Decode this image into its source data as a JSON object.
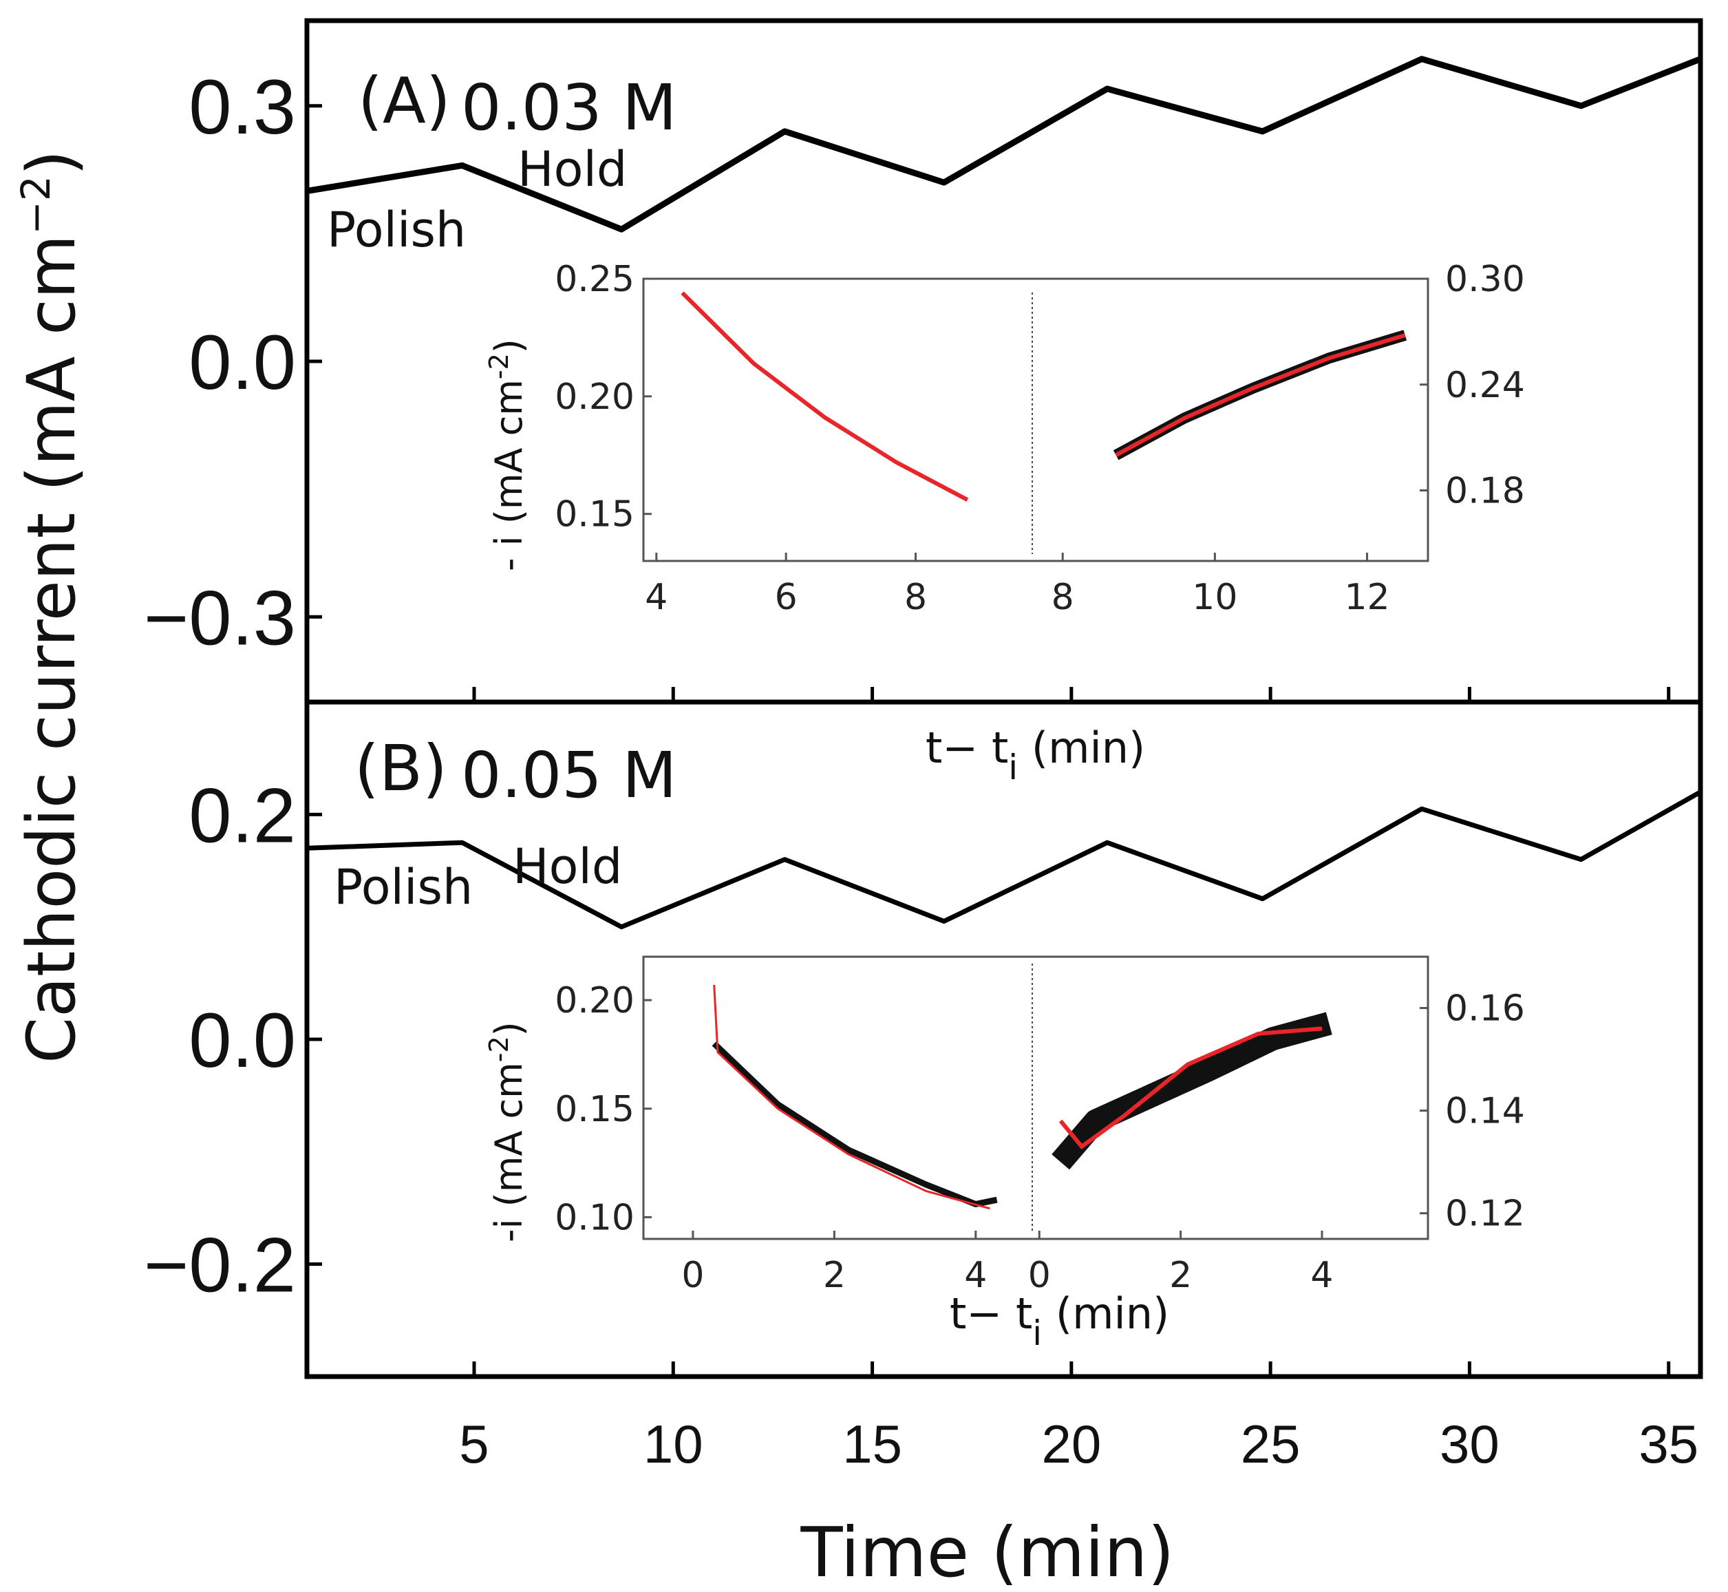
{
  "chart_data": {
    "type": "line",
    "xlabel": "Time (min)",
    "ylabel": "Cathodic current (mA cm",
    "ylabel_sup": "−2",
    "ylabel_close": ")",
    "xlim": [
      0.8,
      35.8
    ],
    "xticks": [
      "5",
      "10",
      "15",
      "20",
      "25",
      "30",
      "35"
    ],
    "xtick_values": [
      5,
      10,
      15,
      20,
      25,
      30,
      35
    ],
    "panels": [
      {
        "id": "A",
        "panel_label": "(A)",
        "concentration": "0.03 M",
        "ylim": [
          -0.4,
          0.4
        ],
        "yticks": [
          "0.3",
          "0.0",
          "−0.3"
        ],
        "ytick_values": [
          0.3,
          0.0,
          -0.3
        ],
        "annotations": {
          "polish": "Polish",
          "hold": "Hold"
        },
        "series": [
          {
            "name": "current",
            "points": [
              [
                0.8,
                0.2
              ],
              [
                4.7,
                0.23
              ],
              [
                8.7,
                0.155
              ],
              [
                12.8,
                0.27
              ],
              [
                16.8,
                0.21
              ],
              [
                20.9,
                0.32
              ],
              [
                24.8,
                0.27
              ],
              [
                28.8,
                0.355
              ],
              [
                32.8,
                0.3
              ],
              [
                35.8,
                0.355
              ]
            ]
          }
        ],
        "inset": {
          "ylabel": "- i (mA cm",
          "ylabel_sup": "-2",
          "ylabel_close": ")",
          "xlabel": "t− t",
          "xlabel_sub": "i",
          "xlabel_tail": " (min)",
          "left": {
            "xlim": [
              3.8,
              9.8
            ],
            "ylim": [
              0.13,
              0.25
            ],
            "xticks": [
              "4",
              "6",
              "8"
            ],
            "xtick_values": [
              4,
              6,
              8
            ],
            "yticks": [
              "0.25",
              "0.20",
              "0.15"
            ],
            "ytick_values": [
              0.25,
              0.2,
              0.15
            ],
            "fit_points": [
              [
                4.4,
                0.244
              ],
              [
                5.5,
                0.214
              ],
              [
                6.6,
                0.191
              ],
              [
                7.7,
                0.172
              ],
              [
                8.8,
                0.156
              ]
            ]
          },
          "right": {
            "xlim": [
              7.6,
              12.8
            ],
            "ylim": [
              0.14,
              0.3
            ],
            "xticks": [
              "8",
              "10",
              "12"
            ],
            "xtick_values": [
              8,
              10,
              12
            ],
            "yticks": [
              "0.30",
              "0.24",
              "0.18"
            ],
            "ytick_values": [
              0.3,
              0.24,
              0.18
            ],
            "data_points": [
              [
                8.7,
                0.2
              ],
              [
                9.6,
                0.221
              ],
              [
                10.5,
                0.238
              ],
              [
                11.5,
                0.255
              ],
              [
                12.5,
                0.268
              ]
            ],
            "fit_points": [
              [
                8.7,
                0.2
              ],
              [
                9.6,
                0.221
              ],
              [
                10.5,
                0.238
              ],
              [
                11.5,
                0.255
              ],
              [
                12.5,
                0.268
              ]
            ]
          }
        }
      },
      {
        "id": "B",
        "panel_label": "(B)",
        "concentration": "0.05 M",
        "ylim": [
          -0.3,
          0.3
        ],
        "yticks": [
          "0.2",
          "0.0",
          "−0.2"
        ],
        "ytick_values": [
          0.2,
          0.0,
          -0.2
        ],
        "annotations": {
          "polish": "Polish",
          "hold": "Hold"
        },
        "series": [
          {
            "name": "current",
            "points": [
              [
                0.8,
                0.17
              ],
              [
                4.7,
                0.175
              ],
              [
                8.7,
                0.1
              ],
              [
                12.8,
                0.16
              ],
              [
                16.8,
                0.105
              ],
              [
                20.9,
                0.175
              ],
              [
                24.8,
                0.125
              ],
              [
                28.8,
                0.205
              ],
              [
                32.8,
                0.16
              ],
              [
                35.8,
                0.22
              ]
            ]
          }
        ],
        "inset": {
          "ylabel": "-i (mA cm",
          "ylabel_sup": "-2",
          "ylabel_close": ")",
          "xlabel": "t− t",
          "xlabel_sub": "i",
          "xlabel_tail": " (min)",
          "left": {
            "xlim": [
              -0.7,
              4.8
            ],
            "ylim": [
              0.09,
              0.22
            ],
            "xticks": [
              "0",
              "2",
              "4"
            ],
            "xtick_values": [
              0,
              2,
              4
            ],
            "yticks": [
              "0.20",
              "0.15",
              "0.10"
            ],
            "ytick_values": [
              0.2,
              0.15,
              0.1
            ],
            "data_points": [
              [
                0.3,
                0.18
              ],
              [
                1.2,
                0.152
              ],
              [
                2.2,
                0.131
              ],
              [
                3.3,
                0.115
              ],
              [
                4.0,
                0.106
              ],
              [
                4.3,
                0.108
              ]
            ],
            "fit_points": [
              [
                0.3,
                0.207
              ],
              [
                0.35,
                0.176
              ],
              [
                1.2,
                0.15
              ],
              [
                2.2,
                0.129
              ],
              [
                3.3,
                0.112
              ],
              [
                4.2,
                0.104
              ]
            ]
          },
          "right": {
            "xlim": [
              -0.1,
              5.5
            ],
            "ylim": [
              0.115,
              0.17
            ],
            "xticks": [
              "0",
              "2",
              "4"
            ],
            "xtick_values": [
              0,
              2,
              4
            ],
            "yticks": [
              "0.16",
              "0.14",
              "0.12"
            ],
            "ytick_values": [
              0.16,
              0.14,
              0.12
            ],
            "data_points": [
              [
                0.3,
                0.13
              ],
              [
                0.8,
                0.138
              ],
              [
                1.6,
                0.143
              ],
              [
                2.4,
                0.148
              ],
              [
                3.3,
                0.154
              ],
              [
                4.1,
                0.157
              ]
            ],
            "fit_points": [
              [
                0.3,
                0.138
              ],
              [
                0.6,
                0.133
              ],
              [
                1.2,
                0.139
              ],
              [
                2.1,
                0.149
              ],
              [
                3.1,
                0.155
              ],
              [
                4.0,
                0.156
              ]
            ]
          }
        }
      }
    ]
  }
}
